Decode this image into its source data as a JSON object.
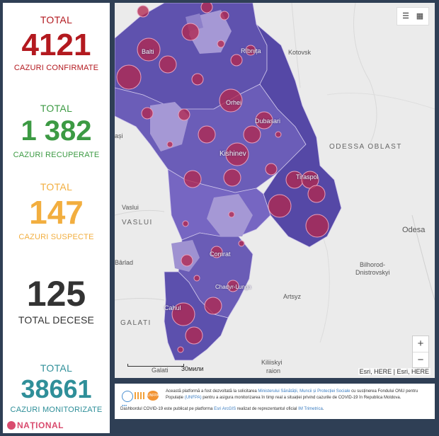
{
  "stats": {
    "total": {
      "label": "TOTAL",
      "value": "4121",
      "caption": "CAZURI CONFIRMATE"
    },
    "recovered": {
      "label": "TOTAL",
      "value": "1 382",
      "caption": "CAZURI RECUPERATE"
    },
    "suspect": {
      "label": "TOTAL",
      "value": "147",
      "caption": "CAZURI SUSPECTE"
    },
    "deaths": {
      "value": "125",
      "caption": "TOTAL DECESE"
    },
    "monitored": {
      "label": "TOTAL",
      "value": "38661",
      "caption": "CAZURI MONITORIZATE"
    }
  },
  "brand": "NAȚIONAL",
  "map": {
    "places": {
      "balti": "Balti",
      "ribnita": "Rîbnița",
      "kotovsk": "Kotovsk",
      "orhei": "Orhei",
      "dubasari": "Dubasari",
      "iasi": "ași",
      "kishinev": "Kishinev",
      "odessa_oblast": "ODESSA OBLAST",
      "tiraspol": "Tiraspol",
      "vaslui_city": "Vaslui",
      "vaslui_region": "VASLUI",
      "odesa": "Odesa",
      "comrat": "Comrat",
      "barlad": "Bârlad",
      "bilhorod": "Bilhorod-",
      "dnistrovskyi": "Dnistrovskyi",
      "ciadyr": "Chadyr-Lunga",
      "artsyz": "Artsyz",
      "galati_region": "GALATI",
      "cahul": "Cahul",
      "galati_city": "Galati",
      "kiliiskyi": "Kiliiskyi",
      "raion": "raion"
    },
    "scale_label": "30мили",
    "attribution": "Esri, HERE | Esri, HERE",
    "zoom_in": "+",
    "zoom_out": "−",
    "colors": {
      "region_dark": "#5a4ea8",
      "region_mid": "#7466c0",
      "region_light": "#a79ad6",
      "bubble": "#b1284f"
    }
  },
  "footer": {
    "line1_prefix": "Această platformă a fost dezvoltată la solicitarea",
    "line1_link1": "Ministerului Sănătății, Muncii și Protecției Sociale",
    "line1_mid": "cu susținerea Fondului ONU pentru Populație",
    "line1_link2": "(UNFPA)",
    "line1_suffix": "pentru a asigura monitorizarea în timp real a situației privind cazurile de COVID-19 în Republica Moldova.",
    "line2_prefix": "Dashbordul COVID-19 este publicat pe platforma",
    "line2_link1": "Esri ArcGIS",
    "line2_mid": "realizat de reprezentantul oficial",
    "line2_link2": "IM Trimetrica",
    "line2_suffix": ".",
    "logo_label": "UNFPA"
  }
}
